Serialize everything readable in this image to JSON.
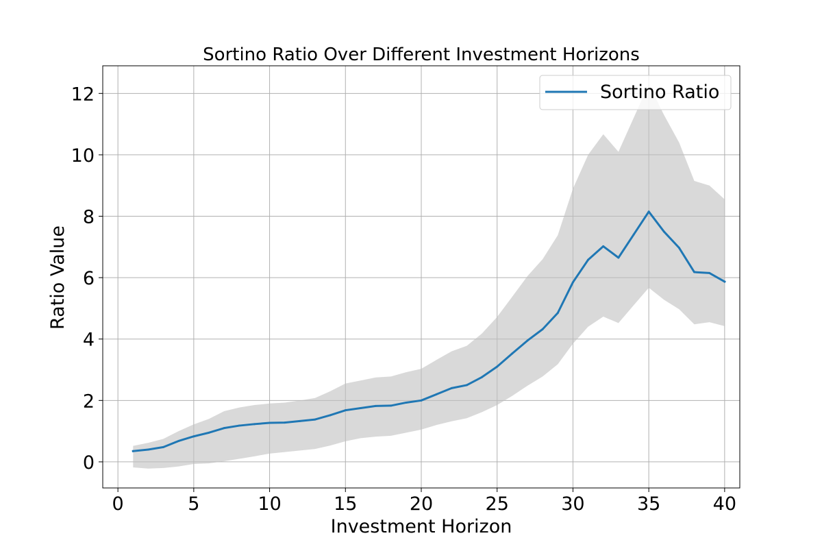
{
  "chart_data": {
    "type": "line",
    "title": "Sortino Ratio Over Different Investment Horizons",
    "xlabel": "Investment Horizon",
    "ylabel": "Ratio Value",
    "xlim": [
      -1,
      41
    ],
    "ylim": [
      -0.85,
      12.9
    ],
    "x_ticks": [
      0,
      5,
      10,
      15,
      20,
      25,
      30,
      35,
      40
    ],
    "x_tick_labels": [
      "0",
      "5",
      "10",
      "15",
      "20",
      "25",
      "30",
      "35",
      "40"
    ],
    "y_ticks": [
      0,
      2,
      4,
      6,
      8,
      10,
      12
    ],
    "y_tick_labels": [
      "0",
      "2",
      "4",
      "6",
      "8",
      "10",
      "12"
    ],
    "grid": true,
    "legend_position": "top-right",
    "x": [
      1,
      2,
      3,
      4,
      5,
      6,
      7,
      8,
      9,
      10,
      11,
      12,
      13,
      14,
      15,
      16,
      17,
      18,
      19,
      20,
      21,
      22,
      23,
      24,
      25,
      26,
      27,
      28,
      29,
      30,
      31,
      32,
      33,
      34,
      35,
      36,
      37,
      38,
      39,
      40
    ],
    "series": [
      {
        "name": "Sortino Ratio",
        "color": "#1f77b4",
        "values": [
          0.35,
          0.4,
          0.48,
          0.68,
          0.83,
          0.95,
          1.1,
          1.18,
          1.23,
          1.27,
          1.28,
          1.33,
          1.38,
          1.52,
          1.68,
          1.75,
          1.82,
          1.83,
          1.93,
          2.0,
          2.2,
          2.4,
          2.5,
          2.76,
          3.1,
          3.53,
          3.95,
          4.32,
          4.85,
          5.85,
          6.58,
          7.02,
          6.65,
          7.4,
          8.15,
          7.5,
          6.97,
          6.18,
          6.15,
          5.87
        ]
      }
    ],
    "band": {
      "color": "#bfbfbf",
      "opacity": 0.6,
      "upper": [
        0.52,
        0.62,
        0.75,
        1.0,
        1.22,
        1.4,
        1.65,
        1.77,
        1.85,
        1.9,
        1.93,
        2.0,
        2.08,
        2.3,
        2.55,
        2.65,
        2.75,
        2.78,
        2.92,
        3.03,
        3.32,
        3.6,
        3.78,
        4.18,
        4.72,
        5.38,
        6.05,
        6.6,
        7.38,
        8.9,
        10.0,
        10.67,
        10.1,
        11.2,
        12.3,
        11.3,
        10.4,
        9.15,
        9.0,
        8.55
      ],
      "lower": [
        -0.18,
        -0.22,
        -0.2,
        -0.15,
        -0.07,
        -0.05,
        0.02,
        0.1,
        0.18,
        0.27,
        0.32,
        0.37,
        0.42,
        0.53,
        0.67,
        0.77,
        0.82,
        0.85,
        0.95,
        1.05,
        1.2,
        1.32,
        1.42,
        1.62,
        1.85,
        2.15,
        2.48,
        2.78,
        3.18,
        3.85,
        4.4,
        4.73,
        4.52,
        5.1,
        5.67,
        5.28,
        4.97,
        4.48,
        4.55,
        4.42
      ]
    }
  }
}
